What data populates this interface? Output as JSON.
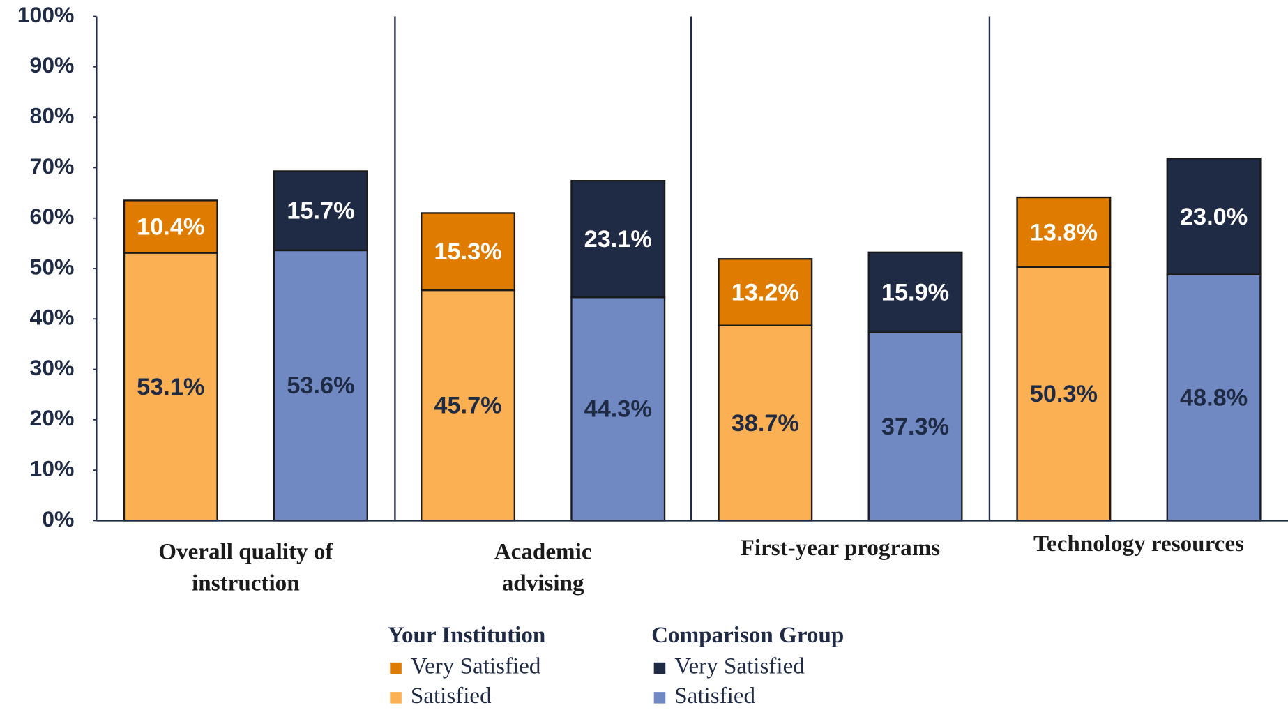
{
  "chart_data": {
    "type": "grouped_stacked_bar",
    "categories": [
      "Overall quality of instruction",
      "Academic advising",
      "First-year programs",
      "Technology resources"
    ],
    "groups": [
      {
        "name": "Your Institution",
        "series": [
          {
            "name": "Very Satisfied",
            "color": "#df7c00",
            "label_color": "#ffffff",
            "values": [
              10.4,
              15.3,
              13.2,
              13.8
            ],
            "value_labels": [
              "10.4%",
              "15.3%",
              "13.2%",
              "13.8%"
            ]
          },
          {
            "name": "Satisfied",
            "color": "#fbb153",
            "label_color": "#1f2a44",
            "values": [
              53.1,
              45.7,
              38.7,
              50.3
            ],
            "value_labels": [
              "53.1%",
              "45.7%",
              "38.7%",
              "50.3%"
            ]
          }
        ]
      },
      {
        "name": "Comparison Group",
        "series": [
          {
            "name": "Very Satisfied",
            "color": "#1f2a44",
            "label_color": "#ffffff",
            "values": [
              15.7,
              23.1,
              15.9,
              23.0
            ],
            "value_labels": [
              "15.7%",
              "23.1%",
              "15.9%",
              "23.0%"
            ]
          },
          {
            "name": "Satisfied",
            "color": "#7189c2",
            "label_color": "#1f2a44",
            "values": [
              53.6,
              44.3,
              37.3,
              48.8
            ],
            "value_labels": [
              "53.6%",
              "44.3%",
              "37.3%",
              "48.8%"
            ]
          }
        ]
      }
    ],
    "ylim": [
      0,
      100
    ],
    "yticks": [
      {
        "value": 0,
        "label": "0%"
      },
      {
        "value": 10,
        "label": "10%"
      },
      {
        "value": 20,
        "label": "20%"
      },
      {
        "value": 30,
        "label": "30%"
      },
      {
        "value": 40,
        "label": "40%"
      },
      {
        "value": 50,
        "label": "50%"
      },
      {
        "value": 60,
        "label": "60%"
      },
      {
        "value": 70,
        "label": "70%"
      },
      {
        "value": 80,
        "label": "80%"
      },
      {
        "value": 90,
        "label": "90%"
      },
      {
        "value": 100,
        "label": "100%"
      }
    ],
    "grid": false
  }
}
